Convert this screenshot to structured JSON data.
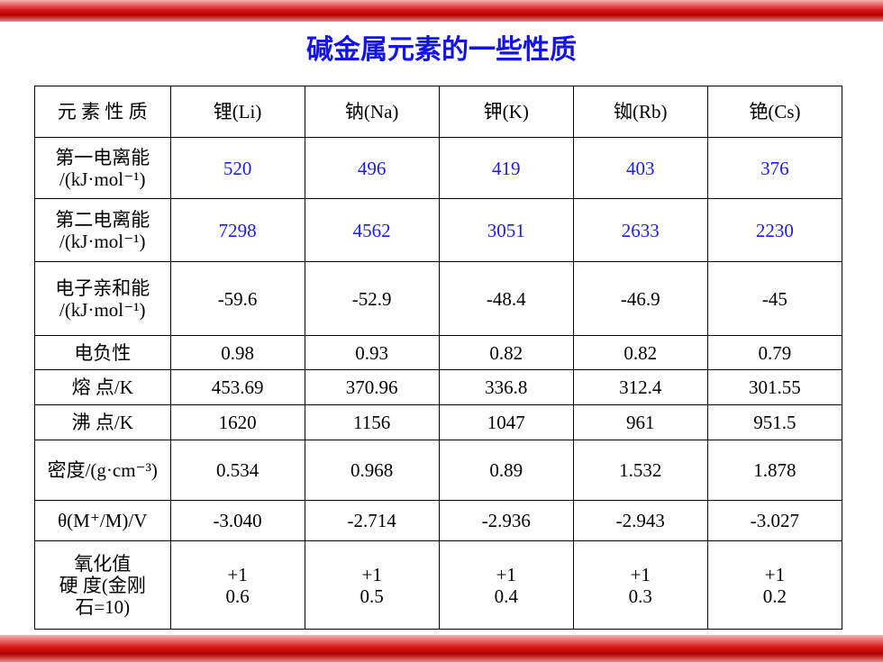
{
  "header": {
    "title": "碱金属元素的一些性质"
  },
  "table": {
    "columns": [
      "元 素 性 质",
      "锂(Li)",
      "钠(Na)",
      "钾(K)",
      "铷(Rb)",
      "铯(Cs)"
    ],
    "rows": [
      {
        "label": [
          "第一电离能",
          "/(kJ·mol⁻¹)"
        ],
        "values": [
          "520",
          "496",
          "419",
          "403",
          "376"
        ],
        "color": "#1a1aff"
      },
      {
        "label": [
          "第二电离能",
          "/(kJ·mol⁻¹)"
        ],
        "values": [
          "7298",
          "4562",
          "3051",
          "2633",
          "2230"
        ],
        "color": "#1a1aff"
      },
      {
        "label": [
          "电子亲和能",
          "/(kJ·mol⁻¹)"
        ],
        "values": [
          "-59.6",
          "-52.9",
          "-48.4",
          "-46.9",
          "-45"
        ]
      },
      {
        "label": [
          "电负性"
        ],
        "values": [
          "0.98",
          "0.93",
          "0.82",
          "0.82",
          "0.79"
        ]
      },
      {
        "label": [
          "熔 点/K"
        ],
        "values": [
          "453.69",
          "370.96",
          "336.8",
          "312.4",
          "301.55"
        ]
      },
      {
        "label": [
          "沸 点/K"
        ],
        "values": [
          "1620",
          "1156",
          "1047",
          "961",
          "951.5"
        ]
      },
      {
        "label": [
          "密度/(g·cm⁻³)"
        ],
        "values": [
          "0.534",
          "0.968",
          "0.89",
          "1.532",
          "1.878"
        ]
      },
      {
        "label": [
          "θ(M⁺/M)/V"
        ],
        "values": [
          "-3.040",
          "-2.714",
          "-2.936",
          "-2.943",
          "-3.027"
        ]
      },
      {
        "label": [
          "氧化值",
          "硬 度(金刚",
          "石=10)"
        ],
        "values": [
          [
            "+1",
            "0.6"
          ],
          [
            "+1",
            "0.5"
          ],
          [
            "+1",
            "0.4"
          ],
          [
            "+1",
            "0.3"
          ],
          [
            "+1",
            "0.2"
          ]
        ]
      }
    ]
  }
}
